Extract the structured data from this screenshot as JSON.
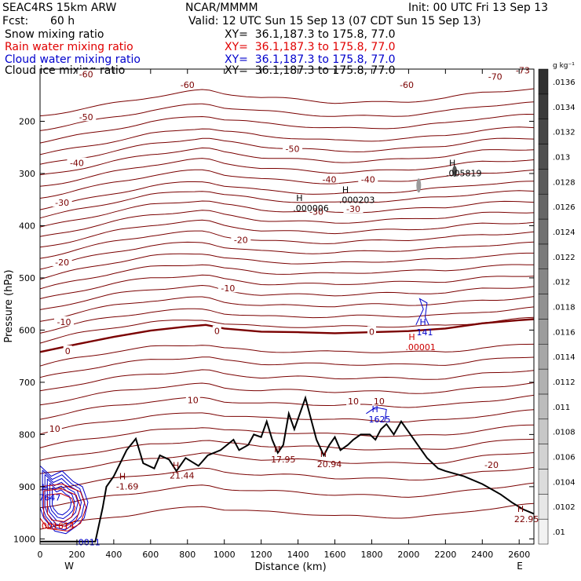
{
  "header": {
    "model": "SEAC4RS 15km ARW",
    "org": "NCAR/MMMM",
    "init": "Init: 00 UTC Fri 13 Sep 13",
    "fcst_label": "Fcst:",
    "fcst_value": "60 h",
    "valid": "Valid: 12 UTC Sun 15 Sep 13 (07 CDT Sun 15 Sep 13)"
  },
  "fields": [
    {
      "name": "Snow mixing ratio",
      "xy": "XY=  36.1,187.3 to 175.8, 77.0",
      "color": "#000000"
    },
    {
      "name": "Rain water mixing ratio",
      "xy": "XY=  36.1,187.3 to 175.8, 77.0",
      "color": "#e00000"
    },
    {
      "name": "Cloud water mixing ratio",
      "xy": "XY=  36.1,187.3 to 175.8, 77.0",
      "color": "#0000cc"
    },
    {
      "name": "Cloud ice mixing ratio",
      "xy": "XY=  36.1,187.3 to 175.8, 77.0",
      "color": "#000000"
    }
  ],
  "chart_data": {
    "type": "cross-section contour",
    "xlabel": "Distance (km)",
    "ylabel": "Pressure (hPa)",
    "xlim": [
      0,
      2680
    ],
    "ylim": [
      100,
      1010
    ],
    "x_ticks": [
      0,
      200,
      400,
      600,
      800,
      1000,
      1200,
      1400,
      1600,
      1800,
      2000,
      2200,
      2400,
      2600
    ],
    "x_tick_labels": [
      "0",
      "200",
      "400",
      "600",
      "800",
      "1000",
      "1200",
      "1400",
      "1600",
      "1800",
      "2000",
      "2200",
      "2400",
      "2600"
    ],
    "y_ticks": [
      200,
      300,
      400,
      500,
      600,
      700,
      800,
      900,
      1000
    ],
    "y_tick_labels": [
      "200",
      "300",
      "400",
      "500",
      "600",
      "700",
      "800",
      "900",
      "1000"
    ],
    "left_end_label": "W",
    "right_end_label": "E",
    "contour_color": "#7a0000",
    "freezing_level": [
      [
        0,
        642
      ],
      [
        200,
        627
      ],
      [
        400,
        613
      ],
      [
        600,
        601
      ],
      [
        800,
        593
      ],
      [
        900,
        590
      ],
      [
        1000,
        597
      ],
      [
        1200,
        603
      ],
      [
        1400,
        604
      ],
      [
        1600,
        606
      ],
      [
        1800,
        604
      ],
      [
        2000,
        602
      ],
      [
        2200,
        597
      ],
      [
        2400,
        587
      ],
      [
        2600,
        581
      ],
      [
        2680,
        579
      ]
    ],
    "temperature_labels": [
      {
        "text": "-60",
        "x": 250,
        "p": 110
      },
      {
        "text": "-60",
        "x": 800,
        "p": 130
      },
      {
        "text": "-60",
        "x": 1990,
        "p": 130
      },
      {
        "text": "-70",
        "x": 2470,
        "p": 114
      },
      {
        "text": "-73",
        "x": 2620,
        "p": 102
      },
      {
        "text": "-50",
        "x": 250,
        "p": 192
      },
      {
        "text": "-50",
        "x": 1370,
        "p": 253
      },
      {
        "text": "-40",
        "x": 200,
        "p": 280
      },
      {
        "text": "-40",
        "x": 1570,
        "p": 311
      },
      {
        "text": "-40",
        "x": 1780,
        "p": 311
      },
      {
        "text": "-30",
        "x": 120,
        "p": 356
      },
      {
        "text": "-30",
        "x": 1500,
        "p": 373
      },
      {
        "text": "-30",
        "x": 1700,
        "p": 368
      },
      {
        "text": "-20",
        "x": 120,
        "p": 470
      },
      {
        "text": "-20",
        "x": 1090,
        "p": 427
      },
      {
        "text": "-10",
        "x": 130,
        "p": 584
      },
      {
        "text": "-10",
        "x": 1020,
        "p": 520
      },
      {
        "text": "0",
        "x": 150,
        "p": 640
      },
      {
        "text": "0",
        "x": 960,
        "p": 602
      },
      {
        "text": "0",
        "x": 1800,
        "p": 603
      },
      {
        "text": "10",
        "x": 80,
        "p": 789
      },
      {
        "text": "10",
        "x": 830,
        "p": 734
      },
      {
        "text": "10",
        "x": 1700,
        "p": 736
      },
      {
        "text": "10",
        "x": 1840,
        "p": 736
      },
      {
        "text": "-20",
        "x": 2450,
        "p": 858
      }
    ],
    "extrema": [
      {
        "mark": "H",
        "text": ".005819",
        "x": 2220,
        "p": 289,
        "color": "#000000"
      },
      {
        "mark": "H",
        "text": ".000203",
        "x": 1640,
        "p": 340,
        "color": "#000000"
      },
      {
        "mark": "H",
        "text": ".000006",
        "x": 1390,
        "p": 356,
        "color": "#000000"
      },
      {
        "mark": "H",
        "text": ".00001",
        "x": 2000,
        "p": 622,
        "color": "#cc0000"
      },
      {
        "mark": "H",
        "text": "141",
        "x": 2060,
        "p": 593,
        "color": "#0000cc"
      },
      {
        "mark": "H",
        "text": "1625",
        "x": 1800,
        "p": 760,
        "color": "#0000cc"
      },
      {
        "mark": "H",
        "text": "7647",
        "x": 10,
        "p": 910,
        "color": "#0000cc"
      },
      {
        "mark": "H",
        "text": "21.44",
        "x": 720,
        "p": 868,
        "color": "#7a0000"
      },
      {
        "mark": "H",
        "text": "17.95",
        "x": 1270,
        "p": 837,
        "color": "#7a0000"
      },
      {
        "mark": "H",
        "text": "20.94",
        "x": 1520,
        "p": 846,
        "color": "#7a0000"
      },
      {
        "mark": "H",
        "text": "-1.69",
        "x": 430,
        "p": 889,
        "color": "#7a0000"
      },
      {
        "mark": "H",
        "text": "22.95",
        "x": 2590,
        "p": 951,
        "color": "#7a0000"
      },
      {
        "mark": "",
        "text": ".001614",
        "x": 10,
        "p": 964,
        "color": "#cc0000"
      },
      {
        "mark": "",
        "text": ".0011",
        "x": 210,
        "p": 996,
        "color": "#0000cc"
      }
    ],
    "terrain": [
      [
        0,
        1005
      ],
      [
        300,
        1005
      ],
      [
        340,
        940
      ],
      [
        360,
        900
      ],
      [
        400,
        880
      ],
      [
        470,
        830
      ],
      [
        520,
        808
      ],
      [
        560,
        855
      ],
      [
        620,
        865
      ],
      [
        650,
        840
      ],
      [
        700,
        848
      ],
      [
        740,
        870
      ],
      [
        790,
        845
      ],
      [
        860,
        860
      ],
      [
        910,
        840
      ],
      [
        980,
        830
      ],
      [
        1050,
        810
      ],
      [
        1080,
        830
      ],
      [
        1130,
        820
      ],
      [
        1160,
        800
      ],
      [
        1200,
        805
      ],
      [
        1230,
        775
      ],
      [
        1260,
        810
      ],
      [
        1290,
        835
      ],
      [
        1320,
        820
      ],
      [
        1350,
        760
      ],
      [
        1380,
        790
      ],
      [
        1410,
        760
      ],
      [
        1440,
        730
      ],
      [
        1470,
        770
      ],
      [
        1500,
        810
      ],
      [
        1540,
        840
      ],
      [
        1570,
        820
      ],
      [
        1600,
        805
      ],
      [
        1630,
        830
      ],
      [
        1670,
        820
      ],
      [
        1700,
        810
      ],
      [
        1740,
        800
      ],
      [
        1790,
        800
      ],
      [
        1820,
        810
      ],
      [
        1850,
        790
      ],
      [
        1880,
        780
      ],
      [
        1920,
        800
      ],
      [
        1960,
        775
      ],
      [
        2000,
        795
      ],
      [
        2050,
        820
      ],
      [
        2100,
        845
      ],
      [
        2160,
        865
      ],
      [
        2200,
        870
      ],
      [
        2300,
        880
      ],
      [
        2400,
        895
      ],
      [
        2500,
        915
      ],
      [
        2560,
        930
      ],
      [
        2620,
        943
      ],
      [
        2680,
        952
      ]
    ],
    "colorbar": {
      "unit": "g kg⁻¹",
      "labels": [
        ".01",
        ".0102",
        ".0104",
        ".0106",
        ".0108",
        ".011",
        ".0112",
        ".0114",
        ".0116",
        ".0118",
        ".012",
        ".0122",
        ".0124",
        ".0126",
        ".0128",
        ".013",
        ".0132",
        ".0134",
        ".0136"
      ],
      "lightest": "#f2f2f2",
      "darkest": "#303030"
    }
  }
}
